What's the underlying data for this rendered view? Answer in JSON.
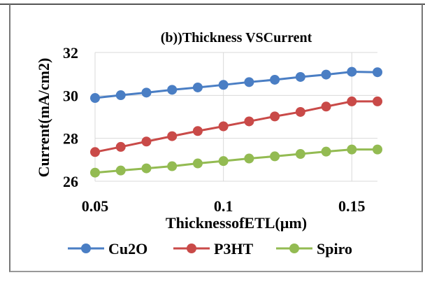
{
  "chart_data": {
    "type": "line",
    "title": "(b))Thickness VSCurrent",
    "xlabel": "ThicknessofETL(µm)",
    "ylabel": "Current(mA/cm2)",
    "xlim": [
      0.05,
      0.16
    ],
    "ylim": [
      26,
      32
    ],
    "xticks": [
      0.05,
      0.1,
      0.15
    ],
    "xtick_labels": [
      "0.05",
      "0.1",
      "0.15"
    ],
    "yticks": [
      26,
      28,
      30,
      32
    ],
    "ytick_labels": [
      "26",
      "28",
      "30",
      "32"
    ],
    "grid": true,
    "legend_position": "bottom",
    "x": [
      0.05,
      0.06,
      0.07,
      0.08,
      0.09,
      0.1,
      0.11,
      0.12,
      0.13,
      0.14,
      0.15,
      0.16
    ],
    "series": [
      {
        "name": "Cu2O",
        "color": "#4a7ec4",
        "values": [
          29.88,
          30.01,
          30.13,
          30.26,
          30.37,
          30.49,
          30.62,
          30.73,
          30.86,
          30.97,
          31.1,
          31.08
        ]
      },
      {
        "name": "P3HT",
        "color": "#c94a48",
        "values": [
          27.36,
          27.6,
          27.85,
          28.1,
          28.34,
          28.56,
          28.79,
          29.02,
          29.23,
          29.48,
          29.72,
          29.72
        ]
      },
      {
        "name": "Spiro",
        "color": "#93bb52",
        "values": [
          26.4,
          26.5,
          26.6,
          26.7,
          26.83,
          26.94,
          27.06,
          27.16,
          27.27,
          27.38,
          27.48,
          27.48
        ]
      }
    ]
  }
}
